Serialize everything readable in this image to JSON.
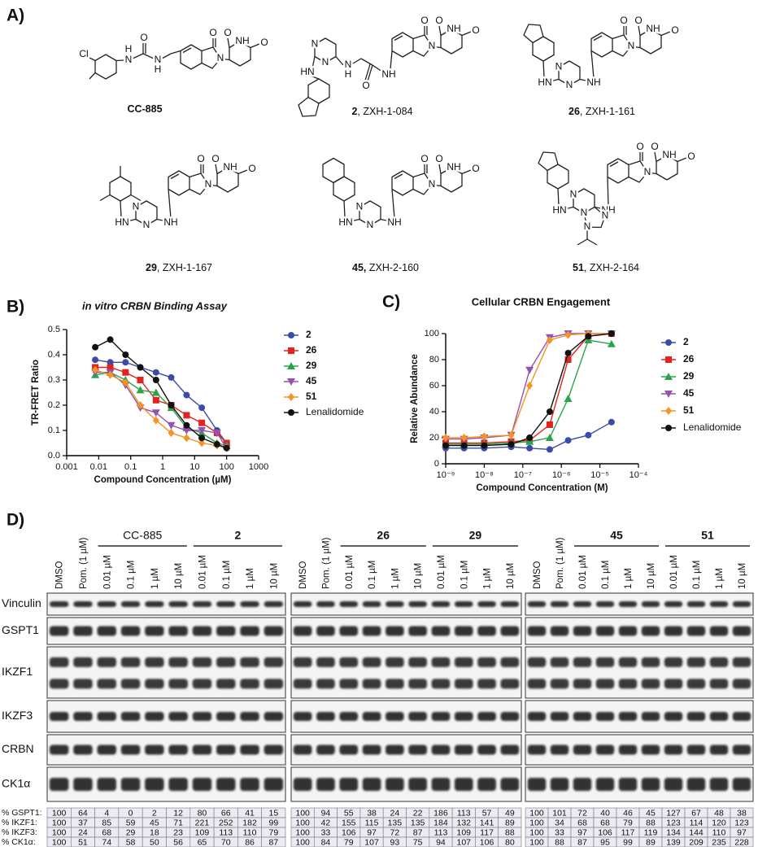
{
  "panel_a": {
    "label": "A)",
    "compounds": [
      {
        "caption_bold": "CC-885",
        "atoms": [
          "O",
          "N",
          "O",
          "NH",
          "O",
          "Cl",
          "H",
          "N",
          "O",
          "N",
          "H"
        ]
      },
      {
        "caption_bold": "2",
        "caption_rest": ", ZXH-1-084",
        "atoms": [
          "O",
          "N",
          "O",
          "NH",
          "O",
          "NH",
          "O",
          "N",
          "H",
          "N",
          "N",
          "HN"
        ]
      },
      {
        "caption_bold": "26",
        "caption_rest": ", ZXH-1-161",
        "atoms": [
          "O",
          "N",
          "O",
          "NH",
          "O",
          "HN",
          "N",
          "N",
          "NH"
        ]
      },
      {
        "caption_bold": "29",
        "caption_rest": ", ZXH-1-167",
        "atoms": [
          "O",
          "N",
          "O",
          "NH",
          "O",
          "HN",
          "N",
          "N",
          "NH"
        ]
      },
      {
        "caption_bold": "45,",
        "caption_rest": " ZXH-2-160",
        "atoms": [
          "O",
          "N",
          "O",
          "NH",
          "O",
          "HN",
          "N",
          "N",
          "NH"
        ]
      },
      {
        "caption_bold": "51",
        "caption_rest": ", ZXH-2-164",
        "atoms": [
          "O",
          "N",
          "O",
          "NH",
          "O",
          "HN",
          "N",
          "N",
          "NH",
          "N",
          "N"
        ]
      }
    ]
  },
  "chart_data": [
    {
      "type": "line",
      "panel_label": "B)",
      "title": "in vitro CRBN Binding Assay",
      "x_label": "Compound Concentration (µM)",
      "y_label": "TR-FRET Ratio",
      "log_x": true,
      "xlim": [
        0.001,
        1000
      ],
      "xticks": [
        0.001,
        0.01,
        0.1,
        1,
        10,
        100,
        1000
      ],
      "ylim": [
        0,
        0.5
      ],
      "yticks": [
        {
          "value": 0,
          "label": "0.0"
        },
        0.1,
        0.2,
        0.3,
        0.4,
        0.5
      ],
      "x": [
        0.0078,
        0.023,
        0.069,
        0.2,
        0.62,
        1.85,
        5.6,
        16.7,
        50,
        100
      ],
      "series": [
        {
          "name": "2",
          "color": "#3b4ba8",
          "marker": "circle",
          "values": [
            0.38,
            0.37,
            0.37,
            0.35,
            0.33,
            0.31,
            0.24,
            0.19,
            0.1,
            0.05
          ]
        },
        {
          "name": "26",
          "color": "#e3231f",
          "marker": "square",
          "values": [
            0.35,
            0.35,
            0.33,
            0.3,
            0.22,
            0.2,
            0.16,
            0.13,
            0.09,
            0.05
          ]
        },
        {
          "name": "29",
          "color": "#2aa449",
          "marker": "triangle",
          "values": [
            0.32,
            0.33,
            0.3,
            0.26,
            0.25,
            0.19,
            0.11,
            0.09,
            0.05,
            0.04
          ]
        },
        {
          "name": "45",
          "color": "#9650b2",
          "marker": "triangle-down",
          "values": [
            0.33,
            0.33,
            0.28,
            0.19,
            0.17,
            0.12,
            0.1,
            0.1,
            0.09,
            0.03
          ]
        },
        {
          "name": "51",
          "color": "#f59323",
          "marker": "diamond",
          "values": [
            0.34,
            0.32,
            0.29,
            0.2,
            0.14,
            0.09,
            0.07,
            0.05,
            0.04,
            0.03
          ]
        },
        {
          "name": "Lenalidomide",
          "color": "#111111",
          "marker": "circle",
          "values": [
            0.43,
            0.46,
            0.4,
            0.35,
            0.3,
            0.2,
            0.12,
            0.07,
            0.045,
            0.03
          ]
        }
      ]
    },
    {
      "type": "line",
      "panel_label": "C)",
      "title": "Cellular CRBN Engagement",
      "x_label": "Compound Concentration (M)",
      "y_label": "Relative Abundance",
      "log_x": true,
      "xlim": [
        1e-09,
        0.0001
      ],
      "xticks": [
        {
          "value": 1e-09,
          "label": "10⁻⁹"
        },
        {
          "value": 1e-08,
          "label": "10⁻⁸"
        },
        {
          "value": 1e-07,
          "label": "10⁻⁷"
        },
        {
          "value": 1e-06,
          "label": "10⁻⁶"
        },
        {
          "value": 1e-05,
          "label": "10⁻⁵"
        },
        {
          "value": 0.0001,
          "label": "10⁻⁴"
        }
      ],
      "ylim": [
        0,
        100
      ],
      "yticks": [
        0,
        20,
        40,
        60,
        80,
        100
      ],
      "x": [
        1e-09,
        3e-09,
        1e-08,
        5e-08,
        1.5e-07,
        5e-07,
        1.5e-06,
        5e-06,
        2e-05
      ],
      "series": [
        {
          "name": "2",
          "color": "#3b4ba8",
          "marker": "circle",
          "values": [
            12,
            12,
            12,
            13,
            12,
            11,
            18,
            22,
            32
          ]
        },
        {
          "name": "26",
          "color": "#e3231f",
          "marker": "square",
          "values": [
            16,
            16,
            16,
            17,
            18,
            30,
            80,
            98,
            100
          ]
        },
        {
          "name": "29",
          "color": "#2aa449",
          "marker": "triangle",
          "values": [
            15,
            15,
            15,
            16,
            17,
            20,
            50,
            95,
            92
          ]
        },
        {
          "name": "45",
          "color": "#9650b2",
          "marker": "triangle-down",
          "values": [
            19,
            19,
            20,
            22,
            72,
            97,
            100,
            100,
            100
          ]
        },
        {
          "name": "51",
          "color": "#f59323",
          "marker": "diamond",
          "values": [
            20,
            20,
            21,
            22,
            60,
            95,
            99,
            100,
            100
          ]
        },
        {
          "name": "Lenalidomide",
          "color": "#111111",
          "marker": "circle",
          "values": [
            14,
            14,
            14,
            15,
            20,
            40,
            85,
            98,
            100
          ]
        }
      ]
    }
  ],
  "panel_d": {
    "label": "D)",
    "row_labels": [
      "Vinculin",
      "GSPT1",
      "IKZF1",
      "IKZF3",
      "CRBN",
      "CK1α"
    ],
    "table_labels": [
      "% GSPT1:",
      "% IKZF1:",
      "% IKZF3:",
      "% CK1α:"
    ],
    "blots": [
      {
        "groups": [
          {
            "name": "CC-885",
            "bold": false
          },
          {
            "name": "2",
            "bold": true
          }
        ],
        "lanes": [
          "DMSO",
          "Pom. (1 µM)",
          "0.01 µM",
          "0.1 µM",
          "1 µM",
          "10 µM",
          "0.01 µM",
          "0.1 µM",
          "1 µM",
          "10 µM"
        ],
        "table": [
          [
            100,
            64,
            4,
            0,
            2,
            12,
            80,
            66,
            41,
            15
          ],
          [
            100,
            37,
            85,
            59,
            45,
            71,
            221,
            252,
            182,
            99
          ],
          [
            100,
            24,
            68,
            29,
            18,
            23,
            109,
            113,
            110,
            79
          ],
          [
            100,
            51,
            74,
            58,
            50,
            56,
            65,
            70,
            86,
            87
          ]
        ]
      },
      {
        "groups": [
          {
            "name": "26",
            "bold": true
          },
          {
            "name": "29",
            "bold": true
          }
        ],
        "lanes": [
          "DMSO",
          "Pom. (1 µM)",
          "0.01 µM",
          "0.1 µM",
          "1 µM",
          "10 µM",
          "0.01 µM",
          "0.1 µM",
          "1 µM",
          "10 µM"
        ],
        "table": [
          [
            100,
            94,
            55,
            38,
            24,
            22,
            186,
            113,
            57,
            49
          ],
          [
            100,
            42,
            155,
            115,
            135,
            135,
            184,
            132,
            141,
            89
          ],
          [
            100,
            33,
            106,
            97,
            72,
            87,
            113,
            109,
            117,
            88
          ],
          [
            100,
            84,
            79,
            107,
            93,
            75,
            94,
            107,
            106,
            80
          ]
        ]
      },
      {
        "groups": [
          {
            "name": "45",
            "bold": true
          },
          {
            "name": "51",
            "bold": true
          }
        ],
        "lanes": [
          "DMSO",
          "Pom. (1 µM)",
          "0.01 µM",
          "0.1 µM",
          "1 µM",
          "10 µM",
          "0.01 µM",
          "0.1 µM",
          "1 µM",
          "10 µM"
        ],
        "table": [
          [
            100,
            101,
            72,
            40,
            46,
            45,
            127,
            67,
            48,
            38
          ],
          [
            100,
            34,
            68,
            68,
            79,
            88,
            123,
            114,
            120,
            123
          ],
          [
            100,
            33,
            97,
            106,
            117,
            119,
            134,
            144,
            110,
            97
          ],
          [
            100,
            88,
            87,
            95,
            99,
            89,
            139,
            209,
            235,
            228
          ]
        ]
      }
    ]
  }
}
